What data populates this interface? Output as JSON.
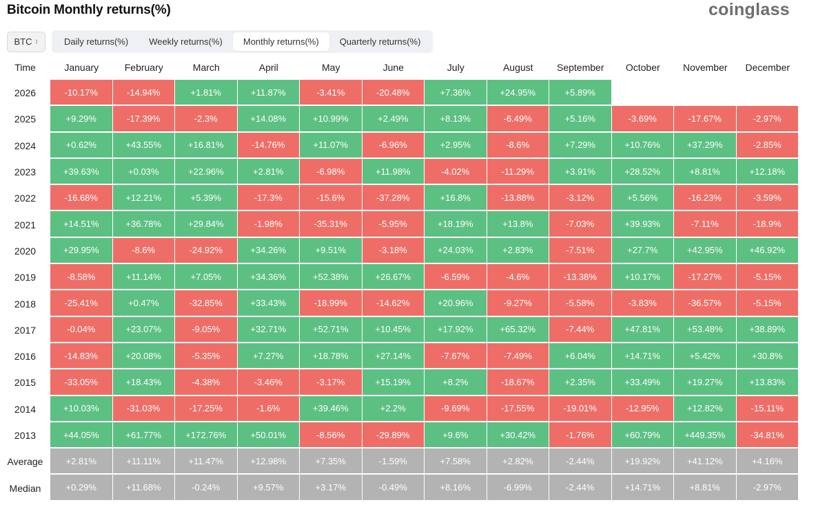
{
  "title": "Bitcoin Monthly returns(%)",
  "brand": "coinglass",
  "coin_select": {
    "value": "BTC"
  },
  "tabs": [
    {
      "label": "Daily returns(%)",
      "active": false
    },
    {
      "label": "Weekly returns(%)",
      "active": false
    },
    {
      "label": "Monthly returns(%)",
      "active": true
    },
    {
      "label": "Quarterly returns(%)",
      "active": false
    }
  ],
  "colors": {
    "positive": "#5cc083",
    "negative": "#ee6e67",
    "summary": "#b3b3b3"
  },
  "table": {
    "first_header": "Time",
    "months": [
      "January",
      "February",
      "March",
      "April",
      "May",
      "June",
      "July",
      "August",
      "September",
      "October",
      "November",
      "December"
    ],
    "rows": [
      {
        "label": "2026",
        "values": [
          "-10.17%",
          "-14.94%",
          "+1.81%",
          "+11.87%",
          "-3.41%",
          "-20.48%",
          "+7.36%",
          "+24.95%",
          "+5.89%",
          "",
          "",
          ""
        ]
      },
      {
        "label": "2025",
        "values": [
          "+9.29%",
          "-17.39%",
          "-2.3%",
          "+14.08%",
          "+10.99%",
          "+2.49%",
          "+8.13%",
          "-6.49%",
          "+5.16%",
          "-3.69%",
          "-17.67%",
          "-2.97%"
        ]
      },
      {
        "label": "2024",
        "values": [
          "+0.62%",
          "+43.55%",
          "+16.81%",
          "-14.76%",
          "+11.07%",
          "-6.96%",
          "+2.95%",
          "-8.6%",
          "+7.29%",
          "+10.76%",
          "+37.29%",
          "-2.85%"
        ]
      },
      {
        "label": "2023",
        "values": [
          "+39.63%",
          "+0.03%",
          "+22.96%",
          "+2.81%",
          "-6.98%",
          "+11.98%",
          "-4.02%",
          "-11.29%",
          "+3.91%",
          "+28.52%",
          "+8.81%",
          "+12.18%"
        ]
      },
      {
        "label": "2022",
        "values": [
          "-16.68%",
          "+12.21%",
          "+5.39%",
          "-17.3%",
          "-15.6%",
          "-37.28%",
          "+16.8%",
          "-13.88%",
          "-3.12%",
          "+5.56%",
          "-16.23%",
          "-3.59%"
        ]
      },
      {
        "label": "2021",
        "values": [
          "+14.51%",
          "+36.78%",
          "+29.84%",
          "-1.98%",
          "-35.31%",
          "-5.95%",
          "+18.19%",
          "+13.8%",
          "-7.03%",
          "+39.93%",
          "-7.11%",
          "-18.9%"
        ]
      },
      {
        "label": "2020",
        "values": [
          "+29.95%",
          "-8.6%",
          "-24.92%",
          "+34.26%",
          "+9.51%",
          "-3.18%",
          "+24.03%",
          "+2.83%",
          "-7.51%",
          "+27.7%",
          "+42.95%",
          "+46.92%"
        ]
      },
      {
        "label": "2019",
        "values": [
          "-8.58%",
          "+11.14%",
          "+7.05%",
          "+34.36%",
          "+52.38%",
          "+26.67%",
          "-6.59%",
          "-4.6%",
          "-13.38%",
          "+10.17%",
          "-17.27%",
          "-5.15%"
        ]
      },
      {
        "label": "2018",
        "values": [
          "-25.41%",
          "+0.47%",
          "-32.85%",
          "+33.43%",
          "-18.99%",
          "-14.62%",
          "+20.96%",
          "-9.27%",
          "-5.58%",
          "-3.83%",
          "-36.57%",
          "-5.15%"
        ]
      },
      {
        "label": "2017",
        "values": [
          "-0.04%",
          "+23.07%",
          "-9.05%",
          "+32.71%",
          "+52.71%",
          "+10.45%",
          "+17.92%",
          "+65.32%",
          "-7.44%",
          "+47.81%",
          "+53.48%",
          "+38.89%"
        ]
      },
      {
        "label": "2016",
        "values": [
          "-14.83%",
          "+20.08%",
          "-5.35%",
          "+7.27%",
          "+18.78%",
          "+27.14%",
          "-7.67%",
          "-7.49%",
          "+6.04%",
          "+14.71%",
          "+5.42%",
          "+30.8%"
        ]
      },
      {
        "label": "2015",
        "values": [
          "-33.05%",
          "+18.43%",
          "-4.38%",
          "-3.46%",
          "-3.17%",
          "+15.19%",
          "+8.2%",
          "-18.67%",
          "+2.35%",
          "+33.49%",
          "+19.27%",
          "+13.83%"
        ]
      },
      {
        "label": "2014",
        "values": [
          "+10.03%",
          "-31.03%",
          "-17.25%",
          "-1.6%",
          "+39.46%",
          "+2.2%",
          "-9.69%",
          "-17.55%",
          "-19.01%",
          "-12.95%",
          "+12.82%",
          "-15.11%"
        ]
      },
      {
        "label": "2013",
        "values": [
          "+44.05%",
          "+61.77%",
          "+172.76%",
          "+50.01%",
          "-8.56%",
          "-29.89%",
          "+9.6%",
          "+30.42%",
          "-1.76%",
          "+60.79%",
          "+449.35%",
          "-34.81%"
        ]
      }
    ],
    "summary_rows": [
      {
        "label": "Average",
        "values": [
          "+2.81%",
          "+11.11%",
          "+11.47%",
          "+12.98%",
          "+7.35%",
          "-1.59%",
          "+7.58%",
          "+2.82%",
          "-2.44%",
          "+19.92%",
          "+41.12%",
          "+4.16%"
        ]
      },
      {
        "label": "Median",
        "values": [
          "+0.29%",
          "+11.68%",
          "-0.24%",
          "+9.57%",
          "+3.17%",
          "-0.49%",
          "+8.16%",
          "-6.99%",
          "-2.44%",
          "+14.71%",
          "+8.81%",
          "-2.97%"
        ]
      }
    ]
  }
}
